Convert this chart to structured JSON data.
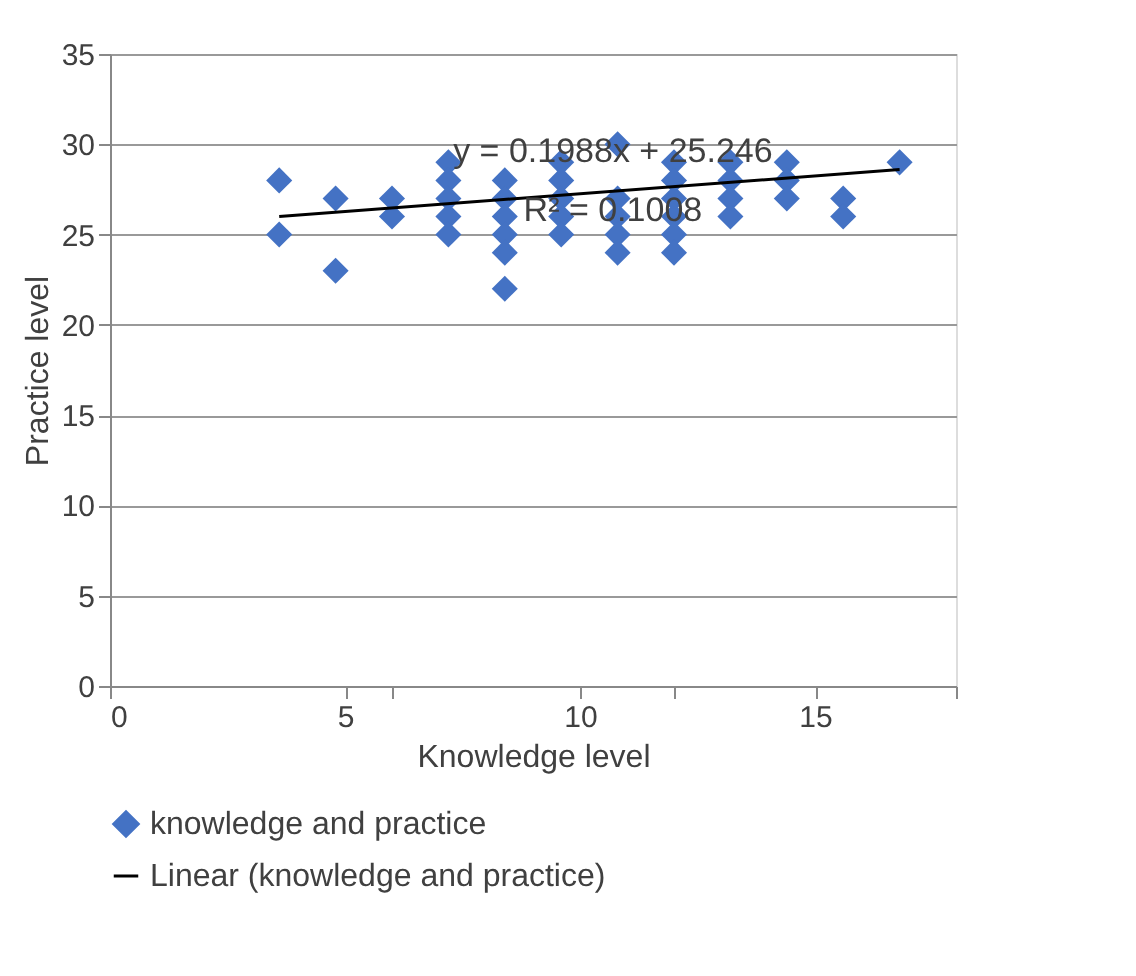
{
  "chart_data": {
    "type": "scatter",
    "xlabel": "Knowledge level",
    "ylabel": "Practice level",
    "xlim": [
      0,
      18
    ],
    "xticks": [
      0,
      5,
      10,
      15,
      {
        "value": 6,
        "label": null
      },
      {
        "value": 12,
        "label": null
      },
      {
        "value": 18,
        "label": null
      }
    ],
    "ylim": [
      0,
      35
    ],
    "yticks": [
      0,
      5,
      10,
      15,
      20,
      25,
      30,
      35
    ],
    "grid": "y",
    "legend": "bottom",
    "marker": "diamond",
    "series": [
      {
        "name": "knowledge and practice",
        "color": "#4472c4",
        "x": [
          3.6,
          3.6,
          4.8,
          4.8,
          6.0,
          6.0,
          7.2,
          7.2,
          7.2,
          7.2,
          7.2,
          8.4,
          8.4,
          8.4,
          8.4,
          8.4,
          8.4,
          9.6,
          9.6,
          9.6,
          9.6,
          9.6,
          10.8,
          10.8,
          10.8,
          10.8,
          10.8,
          12.0,
          12.0,
          12.0,
          12.0,
          12.0,
          12.0,
          13.2,
          13.2,
          13.2,
          13.2,
          14.4,
          14.4,
          14.4,
          15.6,
          15.6,
          16.8
        ],
        "values": [
          28,
          25,
          27,
          23,
          27,
          26,
          29,
          28,
          27,
          26,
          25,
          28,
          27,
          26,
          25,
          24,
          22,
          29,
          28,
          27,
          26,
          25,
          30,
          27,
          26,
          25,
          24,
          29,
          28,
          27,
          26,
          25,
          24,
          29,
          28,
          27,
          26,
          29,
          28,
          27,
          27,
          26,
          29
        ]
      },
      {
        "name": "Linear (knowledge and practice)",
        "color": "#000000",
        "type": "line",
        "marker": "none",
        "x": [
          3.6,
          16.8
        ],
        "values": [
          26.0,
          28.6
        ]
      }
    ],
    "annotations": [
      {
        "text": "y = 0.1988x + 25.246",
        "x": 10.7,
        "y": 29.6
      },
      {
        "text": "R² = 0.1008",
        "x": 10.7,
        "y": 26.3
      }
    ]
  }
}
